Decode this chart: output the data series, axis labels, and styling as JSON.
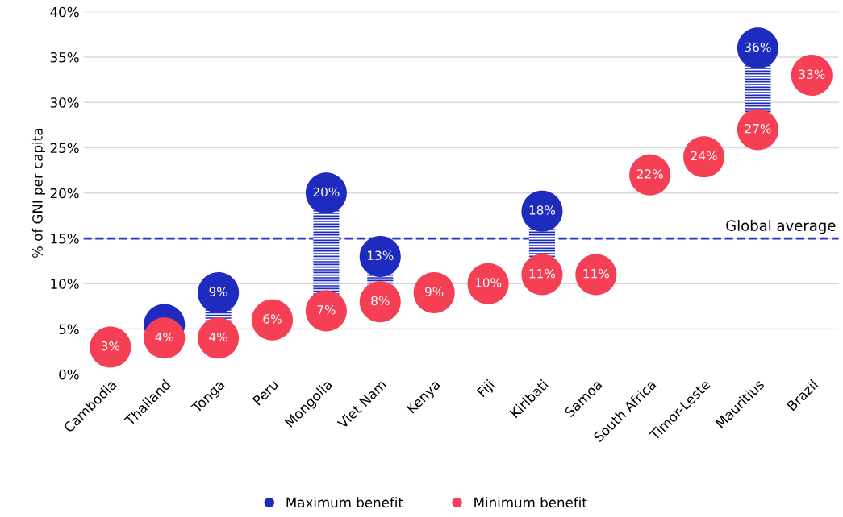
{
  "chart_data": {
    "type": "scatter",
    "ylabel": "% of GNI per capita",
    "categories": [
      "Cambodia",
      "Thailand",
      "Tonga",
      "Peru",
      "Mongolia",
      "Viet Nam",
      "Kenya",
      "Fiji",
      "Kiribati",
      "Samoa",
      "South Africa",
      "Timor-Leste",
      "Mauritius",
      "Brazil"
    ],
    "series": [
      {
        "name": "Maximum benefit",
        "color": "#1f2bbf",
        "values": [
          null,
          5.5,
          9,
          null,
          20,
          13,
          null,
          null,
          18,
          null,
          null,
          null,
          36,
          null
        ],
        "value_labels": [
          null,
          null,
          "9%",
          null,
          "20%",
          "13%",
          null,
          null,
          "18%",
          null,
          null,
          null,
          "36%",
          null
        ]
      },
      {
        "name": "Minimum benefit",
        "color": "#f43f54",
        "values": [
          3,
          4,
          4,
          6,
          7,
          8,
          9,
          10,
          11,
          11,
          22,
          24,
          27,
          33
        ],
        "value_labels": [
          "3%",
          "4%",
          "4%",
          "6%",
          "7%",
          "8%",
          "9%",
          "10%",
          "11%",
          "11%",
          "22%",
          "24%",
          "27%",
          "33%"
        ]
      }
    ],
    "ylim": [
      0,
      40
    ],
    "yticks": [
      {
        "value": 0,
        "label": "0%"
      },
      {
        "value": 5,
        "label": "5%"
      },
      {
        "value": 10,
        "label": "10%"
      },
      {
        "value": 15,
        "label": "15%"
      },
      {
        "value": 20,
        "label": "20%"
      },
      {
        "value": 25,
        "label": "25%"
      },
      {
        "value": 30,
        "label": "30%"
      },
      {
        "value": 35,
        "label": "35%"
      },
      {
        "value": 40,
        "label": "40%"
      }
    ],
    "ref_lines": [
      {
        "axis": "y",
        "value": 15,
        "label": "Global average",
        "color": "#2a35c0",
        "line_style": "dashed"
      }
    ],
    "grid": "y",
    "legend": "bottom",
    "marker": "circle"
  }
}
